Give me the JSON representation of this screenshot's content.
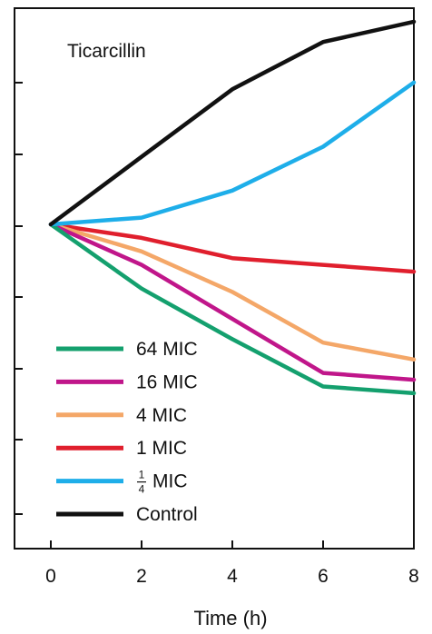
{
  "chart_data": {
    "type": "line",
    "title": "Ticarcillin",
    "xlabel": "Time (h)",
    "ylabel": "",
    "x": [
      0,
      2,
      4,
      6,
      8
    ],
    "xticks": [
      "0",
      "2",
      "4",
      "6",
      "8"
    ],
    "xlim": [
      -0.8,
      8
    ],
    "ylim": [
      0,
      8
    ],
    "yticks_labeled": false,
    "y_tick_count": 7,
    "grid": false,
    "legend": "lower-left",
    "series": [
      {
        "name": "64 MIC",
        "color": "#14a06e",
        "values": [
          4.8,
          3.85,
          3.1,
          2.4,
          2.3
        ]
      },
      {
        "name": "16 MIC",
        "color": "#c0168a",
        "values": [
          4.8,
          4.2,
          3.4,
          2.6,
          2.5
        ]
      },
      {
        "name": "4 MIC",
        "color": "#f4a768",
        "values": [
          4.8,
          4.4,
          3.8,
          3.05,
          2.8
        ]
      },
      {
        "name": "1 MIC",
        "color": "#e01f2d",
        "values": [
          4.8,
          4.6,
          4.3,
          4.2,
          4.1
        ]
      },
      {
        "name": "MIC",
        "name_prefix_fraction": [
          "1",
          "4"
        ],
        "color": "#1eaee9",
        "values": [
          4.8,
          4.9,
          5.3,
          5.95,
          6.9
        ]
      },
      {
        "name": "Control",
        "color": "#111111",
        "values": [
          4.8,
          5.8,
          6.8,
          7.5,
          7.8
        ]
      }
    ]
  }
}
